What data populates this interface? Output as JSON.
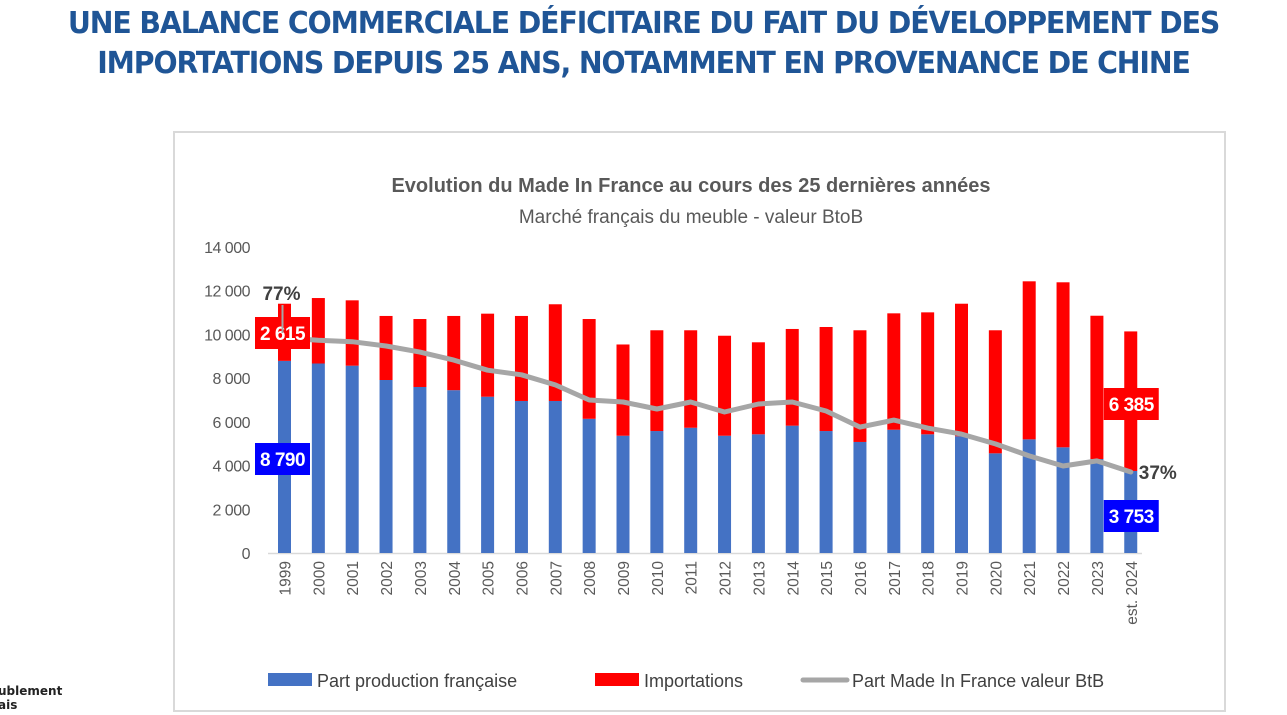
{
  "slide": {
    "title_lines": [
      "UNE BALANCE COMMERCIALE DÉFICITAIRE DU FAIT DU DÉVELOPPEMENT DES",
      "IMPORTATIONS DEPUIS 25 ANS, NOTAMMENT EN PROVENANCE DE CHINE"
    ],
    "logo_fragment_lines": [
      "ublement",
      "ais"
    ]
  },
  "colors": {
    "title": "#1f5596",
    "production": "#4472c4",
    "imports": "#ff0000",
    "share_line": "#a6a6a6",
    "label_blue_bg": "#0000ff",
    "label_red_bg": "#ff0000",
    "axis_text": "#595959",
    "chart_title": "#595959"
  },
  "chart_data": {
    "type": "bar",
    "stacked": true,
    "title": "Evolution du Made In France au cours des 25 dernières années",
    "subtitle": "Marché français du meuble - valeur BtoB",
    "xlabel": "",
    "ylabel": "",
    "ylim": [
      0,
      14000
    ],
    "yticks": [
      0,
      2000,
      4000,
      6000,
      8000,
      10000,
      12000,
      14000
    ],
    "ytick_labels": [
      "0",
      "2 000",
      "4 000",
      "6 000",
      "8 000",
      "10 000",
      "12 000",
      "14 000"
    ],
    "grid": false,
    "legend_position": "bottom",
    "categories": [
      "1999",
      "2000",
      "2001",
      "2002",
      "2003",
      "2004",
      "2005",
      "2006",
      "2007",
      "2008",
      "2009",
      "2010",
      "2011",
      "2012",
      "2013",
      "2014",
      "2015",
      "2016",
      "2017",
      "2018",
      "2019",
      "2020",
      "2021",
      "2022",
      "2023",
      "est. 2024"
    ],
    "series": [
      {
        "name": "Part production française",
        "type": "bar",
        "color": "#4472c4",
        "values": [
          8790,
          8670,
          8570,
          7915,
          7595,
          7450,
          7150,
          6955,
          6955,
          6140,
          5365,
          5580,
          5730,
          5365,
          5430,
          5825,
          5580,
          5080,
          5640,
          5430,
          5340,
          4560,
          5200,
          4835,
          4300,
          3753
        ]
      },
      {
        "name": "Importations",
        "type": "bar",
        "color": "#ff0000",
        "values": [
          2615,
          2995,
          2990,
          2930,
          3110,
          3395,
          3800,
          3890,
          4425,
          4565,
          4175,
          4610,
          4460,
          4575,
          4210,
          4425,
          4760,
          5110,
          5325,
          5580,
          6065,
          5630,
          7230,
          7550,
          6555,
          6385
        ]
      },
      {
        "name": "Part Made In France valeur BtB",
        "type": "line",
        "unit": "%",
        "color": "#a6a6a6",
        "values": [
          77,
          76.3,
          75.9,
          74.6,
          72.8,
          70.4,
          67.4,
          66.0,
          63.0,
          58.5,
          57.9,
          55.8,
          57.9,
          54.9,
          57.3,
          57.9,
          55.2,
          50.4,
          52.5,
          50.1,
          48.3,
          45.4,
          41.8,
          38.8,
          40.3,
          37
        ]
      }
    ],
    "data_labels": [
      {
        "series": "Importations",
        "category": "1999",
        "text": "2 615"
      },
      {
        "series": "Part production française",
        "category": "1999",
        "text": "8 790"
      },
      {
        "series": "Part Made In France valeur BtB",
        "category": "1999",
        "text": "77%"
      },
      {
        "series": "Importations",
        "category": "est. 2024",
        "text": "6 385"
      },
      {
        "series": "Part production française",
        "category": "est. 2024",
        "text": "3 753"
      },
      {
        "series": "Part Made In France valeur BtB",
        "category": "est. 2024",
        "text": "37%"
      }
    ],
    "secondary_axis_hidden": true
  }
}
